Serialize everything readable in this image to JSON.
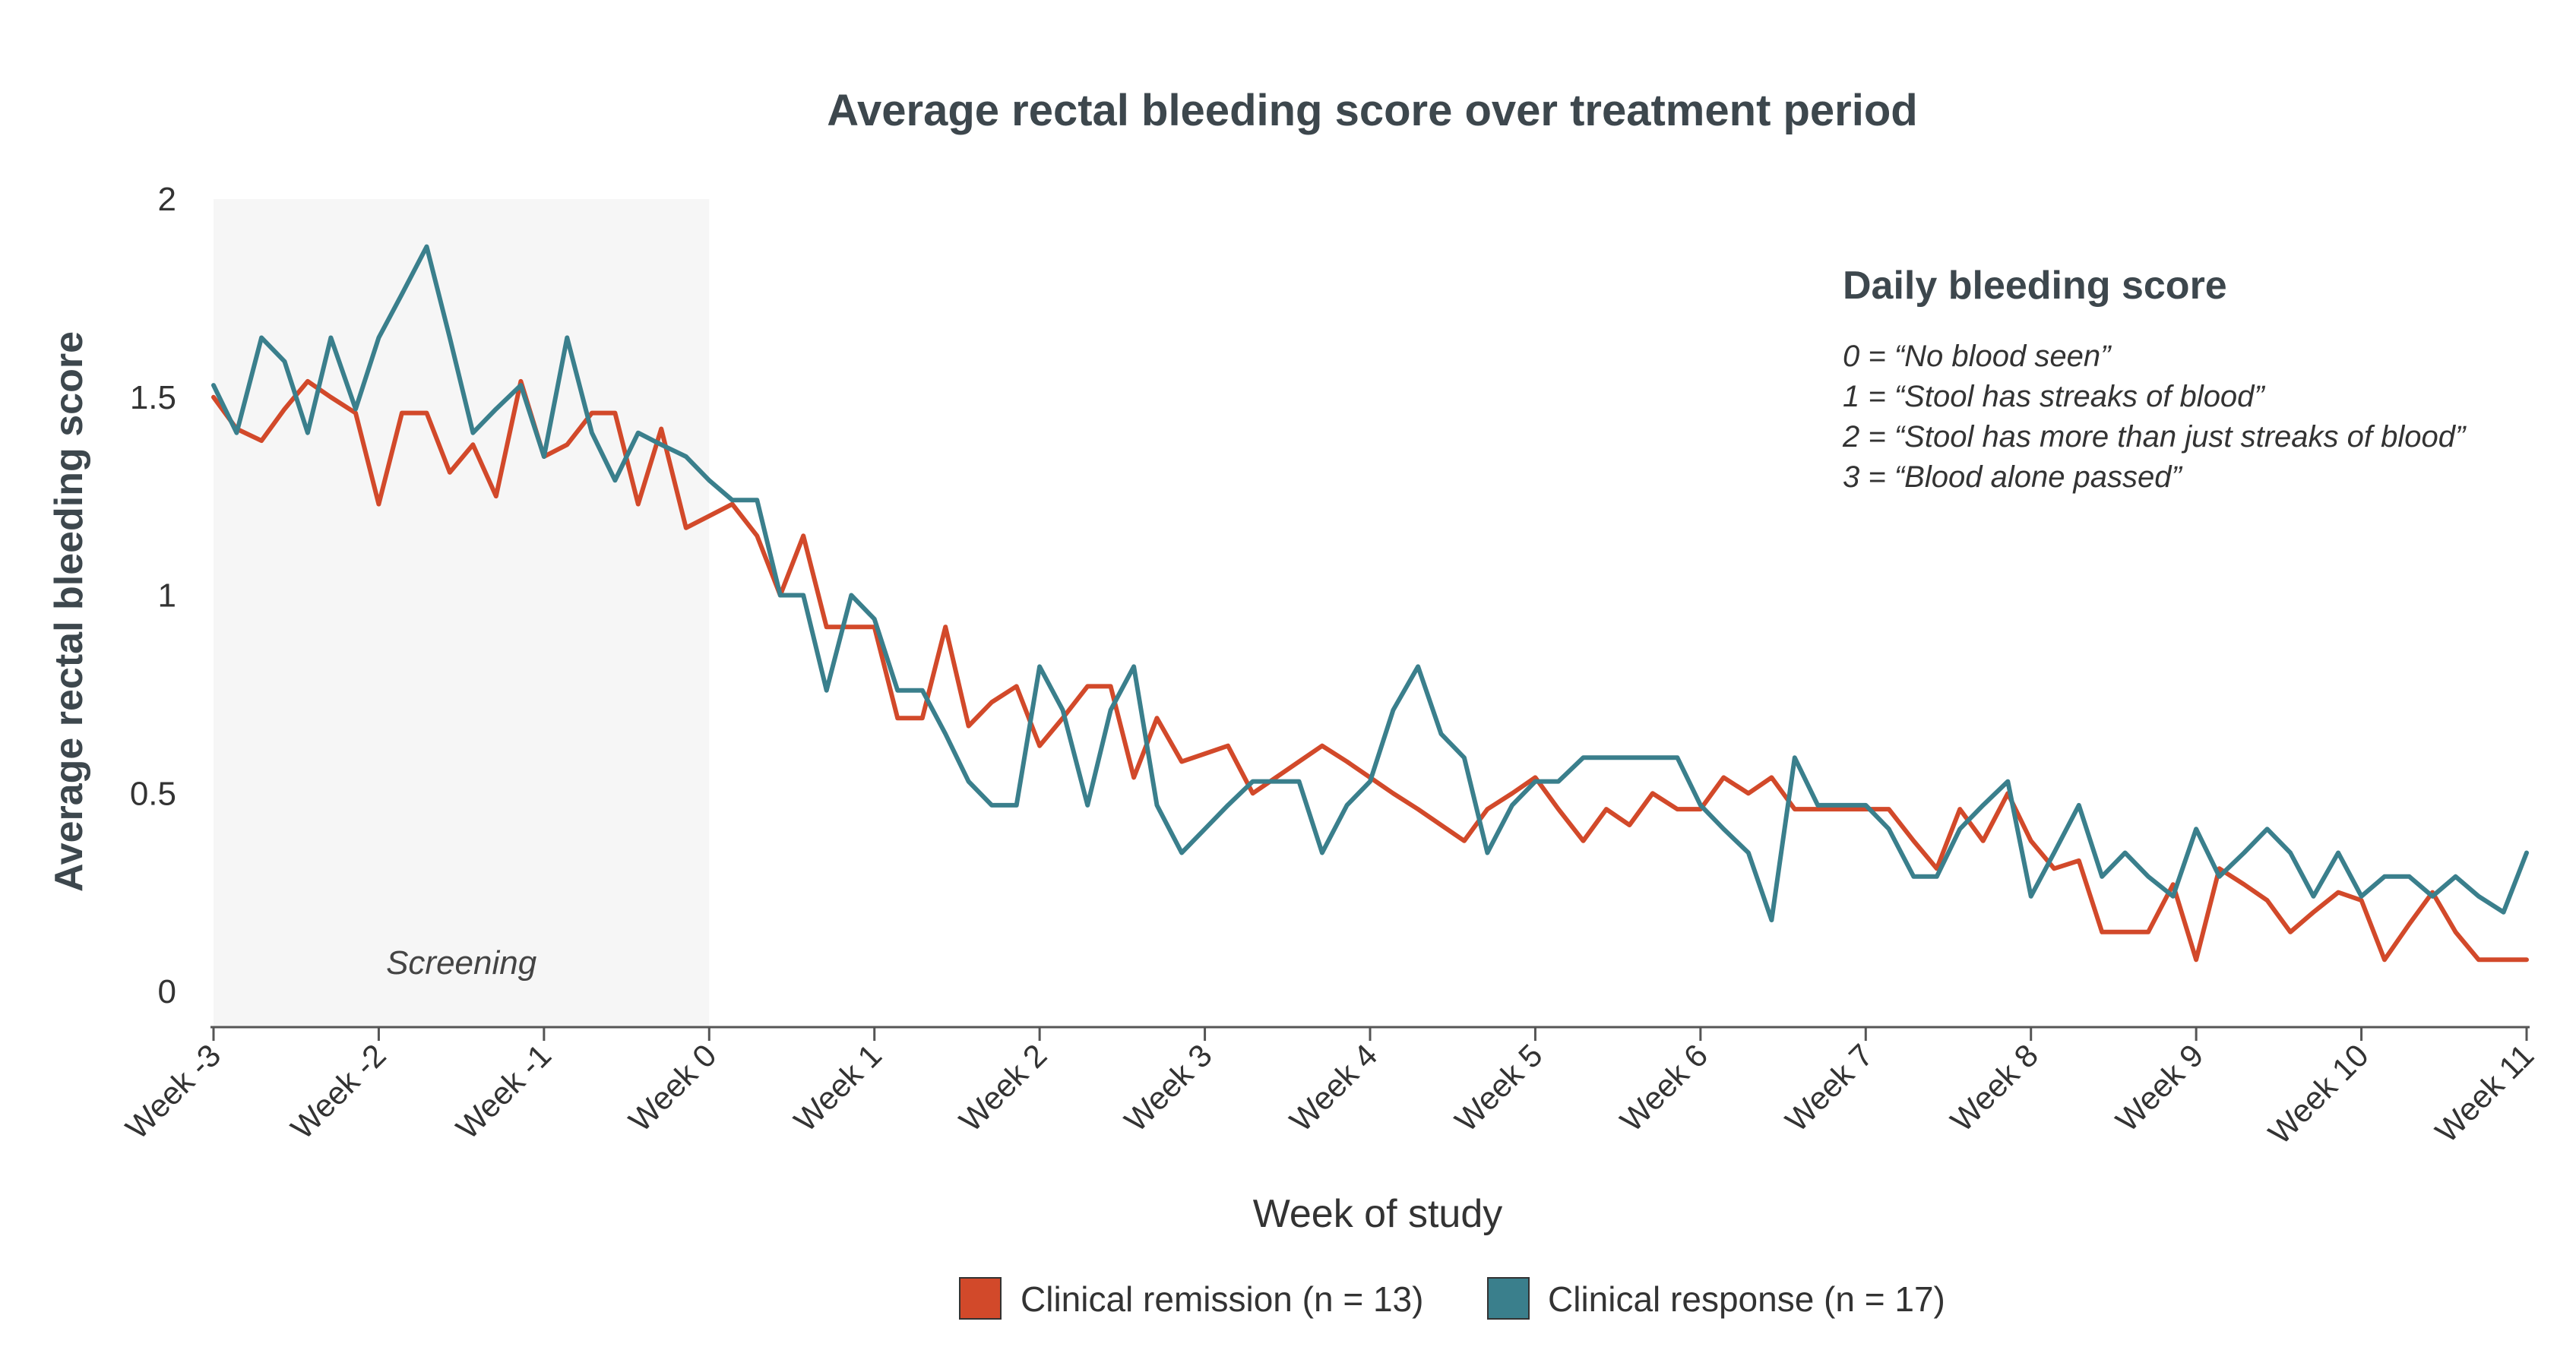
{
  "chart_data": {
    "type": "line",
    "title": "Average rectal bleeding score over treatment period",
    "xlabel": "Week of study",
    "ylabel": "Average rectal bleeding score",
    "xlim": [
      -3,
      11
    ],
    "ylim": [
      -0.1,
      2
    ],
    "yticks": [
      {
        "value": 0,
        "label": "0"
      },
      {
        "value": 0.5,
        "label": "0.5"
      },
      {
        "value": 1,
        "label": "1"
      },
      {
        "value": 1.5,
        "label": "1.5"
      },
      {
        "value": 2,
        "label": "2"
      }
    ],
    "xticks": [
      {
        "value": -3,
        "label": "Week -3"
      },
      {
        "value": -2,
        "label": "Week -2"
      },
      {
        "value": -1,
        "label": "Week -1"
      },
      {
        "value": 0,
        "label": "Week 0"
      },
      {
        "value": 1,
        "label": "Week 1"
      },
      {
        "value": 2,
        "label": "Week 2"
      },
      {
        "value": 3,
        "label": "Week 3"
      },
      {
        "value": 4,
        "label": "Week 4"
      },
      {
        "value": 5,
        "label": "Week 5"
      },
      {
        "value": 6,
        "label": "Week 6"
      },
      {
        "value": 7,
        "label": "Week 7"
      },
      {
        "value": 8,
        "label": "Week 8"
      },
      {
        "value": 9,
        "label": "Week 9"
      },
      {
        "value": 10,
        "label": "Week 10"
      },
      {
        "value": 11,
        "label": "Week 11"
      }
    ],
    "shaded_region": {
      "from": -3,
      "to": 0,
      "label": "Screening"
    },
    "annotation": {
      "title": "Daily bleeding score",
      "lines": [
        "0 = “No blood seen”",
        "1 = “Stool has streaks of blood”",
        "2 = “Stool has more than just streaks of blood”",
        "3 = “Blood alone passed”"
      ]
    },
    "series": [
      {
        "name": "Clinical remission (n = 13)",
        "color": "#d2492a",
        "x": [
          -3,
          -2.86,
          -2.71,
          -2.57,
          -2.43,
          -2.29,
          -2.14,
          -2,
          -1.86,
          -1.71,
          -1.57,
          -1.43,
          -1.29,
          -1.14,
          -1,
          -0.86,
          -0.71,
          -0.57,
          -0.43,
          -0.29,
          -0.14,
          0,
          0.14,
          0.29,
          0.43,
          0.57,
          0.71,
          0.86,
          1,
          1.14,
          1.29,
          1.43,
          1.57,
          1.71,
          1.86,
          2,
          2.14,
          2.29,
          2.43,
          2.57,
          2.71,
          2.86,
          3,
          3.14,
          3.29,
          3.43,
          3.57,
          3.71,
          3.86,
          4,
          4.14,
          4.29,
          4.43,
          4.57,
          4.71,
          4.86,
          5,
          5.14,
          5.29,
          5.43,
          5.57,
          5.71,
          5.86,
          6,
          6.14,
          6.29,
          6.43,
          6.57,
          6.71,
          6.86,
          7,
          7.14,
          7.29,
          7.43,
          7.57,
          7.71,
          7.86,
          8,
          8.14,
          8.29,
          8.43,
          8.57,
          8.71,
          8.86,
          9,
          9.14,
          9.29,
          9.43,
          9.57,
          9.71,
          9.86,
          10,
          10.14,
          10.29,
          10.43,
          10.57,
          10.71,
          10.86,
          11
        ],
        "values": [
          1.5,
          1.42,
          1.39,
          1.47,
          1.54,
          1.5,
          1.46,
          1.23,
          1.46,
          1.46,
          1.31,
          1.38,
          1.25,
          1.54,
          1.35,
          1.38,
          1.46,
          1.46,
          1.23,
          1.42,
          1.17,
          1.2,
          1.23,
          1.15,
          1.0,
          1.15,
          0.92,
          0.92,
          0.92,
          0.69,
          0.69,
          0.92,
          0.67,
          0.73,
          0.77,
          0.62,
          0.69,
          0.77,
          0.77,
          0.54,
          0.69,
          0.58,
          0.6,
          0.62,
          0.5,
          0.54,
          0.58,
          0.62,
          0.58,
          0.54,
          0.5,
          0.46,
          0.42,
          0.38,
          0.46,
          0.5,
          0.54,
          0.46,
          0.38,
          0.46,
          0.42,
          0.5,
          0.46,
          0.46,
          0.54,
          0.5,
          0.54,
          0.46,
          0.46,
          0.46,
          0.46,
          0.46,
          0.38,
          0.31,
          0.46,
          0.38,
          0.5,
          0.38,
          0.31,
          0.33,
          0.15,
          0.15,
          0.15,
          0.27,
          0.08,
          0.31,
          0.27,
          0.23,
          0.15,
          0.2,
          0.25,
          0.23,
          0.08,
          0.17,
          0.25,
          0.15,
          0.08,
          0.08,
          0.08
        ]
      },
      {
        "name": "Clinical response (n = 17)",
        "color": "#3a7f8c",
        "x": [
          -3,
          -2.86,
          -2.71,
          -2.57,
          -2.43,
          -2.29,
          -2.14,
          -2,
          -1.86,
          -1.71,
          -1.57,
          -1.43,
          -1.29,
          -1.14,
          -1,
          -0.86,
          -0.71,
          -0.57,
          -0.43,
          -0.29,
          -0.14,
          0,
          0.14,
          0.29,
          0.43,
          0.57,
          0.71,
          0.86,
          1,
          1.14,
          1.29,
          1.43,
          1.57,
          1.71,
          1.86,
          2,
          2.14,
          2.29,
          2.43,
          2.57,
          2.71,
          2.86,
          3,
          3.14,
          3.29,
          3.43,
          3.57,
          3.71,
          3.86,
          4,
          4.14,
          4.29,
          4.43,
          4.57,
          4.71,
          4.86,
          5,
          5.14,
          5.29,
          5.43,
          5.57,
          5.71,
          5.86,
          6,
          6.14,
          6.29,
          6.43,
          6.57,
          6.71,
          6.86,
          7,
          7.14,
          7.29,
          7.43,
          7.57,
          7.71,
          7.86,
          8,
          8.14,
          8.29,
          8.43,
          8.57,
          8.71,
          8.86,
          9,
          9.14,
          9.29,
          9.43,
          9.57,
          9.71,
          9.86,
          10,
          10.14,
          10.29,
          10.43,
          10.57,
          10.71,
          10.86,
          11
        ],
        "values": [
          1.53,
          1.41,
          1.65,
          1.59,
          1.41,
          1.65,
          1.47,
          1.65,
          1.76,
          1.88,
          1.65,
          1.41,
          1.47,
          1.53,
          1.35,
          1.65,
          1.41,
          1.29,
          1.41,
          1.38,
          1.35,
          1.29,
          1.24,
          1.24,
          1.0,
          1.0,
          0.76,
          1.0,
          0.94,
          0.76,
          0.76,
          0.65,
          0.53,
          0.47,
          0.47,
          0.82,
          0.71,
          0.47,
          0.71,
          0.82,
          0.47,
          0.35,
          0.41,
          0.47,
          0.53,
          0.53,
          0.53,
          0.35,
          0.47,
          0.53,
          0.71,
          0.82,
          0.65,
          0.59,
          0.35,
          0.47,
          0.53,
          0.53,
          0.59,
          0.59,
          0.59,
          0.59,
          0.59,
          0.47,
          0.41,
          0.35,
          0.18,
          0.59,
          0.47,
          0.47,
          0.47,
          0.41,
          0.29,
          0.29,
          0.41,
          0.47,
          0.53,
          0.24,
          0.35,
          0.47,
          0.29,
          0.35,
          0.29,
          0.24,
          0.41,
          0.29,
          0.35,
          0.41,
          0.35,
          0.24,
          0.35,
          0.24,
          0.29,
          0.29,
          0.24,
          0.29,
          0.24,
          0.2,
          0.35
        ]
      }
    ],
    "legend": "bottom-center"
  }
}
